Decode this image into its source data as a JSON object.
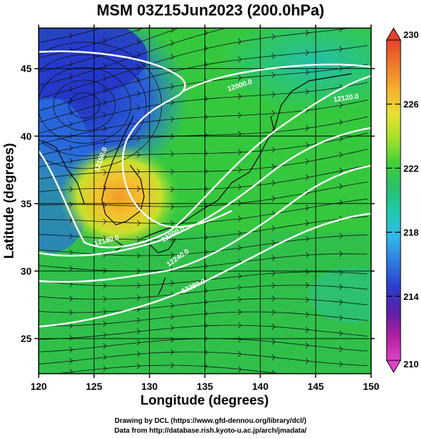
{
  "title": "MSM 03Z15Jun2023 (200.0hPa)",
  "x_axis": {
    "label": "Longitude (degrees)",
    "ticks": [
      "120",
      "125",
      "130",
      "135",
      "140",
      "145",
      "150"
    ]
  },
  "y_axis": {
    "label": "Latitude  (degrees)",
    "ticks": [
      "25",
      "30",
      "35",
      "40",
      "45"
    ]
  },
  "colorbar": {
    "ticks": [
      "230",
      "226",
      "222",
      "218",
      "214",
      "210"
    ],
    "colors": [
      "#e8402b",
      "#f07a2a",
      "#f5b030",
      "#e8e030",
      "#a6e02c",
      "#3fd038",
      "#27c06b",
      "#20c9b0",
      "#30b8e8",
      "#2e7be0",
      "#2a3fd0",
      "#5a1fa8",
      "#b01fa0",
      "#e040c8"
    ]
  },
  "contours": {
    "color": "#ffffff",
    "labels": [
      "12000.0",
      "12120.0",
      "12150.0",
      "12180.0",
      "12200.0",
      "12240.0",
      "12280.0"
    ]
  },
  "footer": {
    "line1": "Drawing by DCL (https://www.gfd-dennou.org/library/dcl/)",
    "line2": "Data from http://database.rish.kyoto-u.ac.jp/arch/jmadata/"
  }
}
